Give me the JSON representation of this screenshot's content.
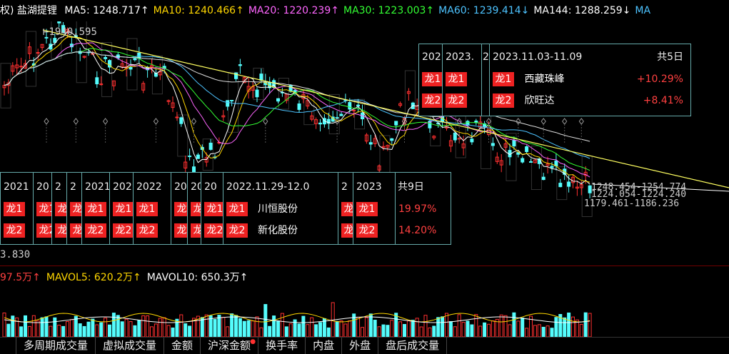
{
  "header": {
    "prefix": "权)",
    "stock_name": "盐湖提锂",
    "ma": [
      {
        "label": "MA5:",
        "value": "1248.717",
        "arrow": "↑",
        "color": "#ffffff"
      },
      {
        "label": "MA10:",
        "value": "1240.466",
        "arrow": "↑",
        "color": "#ffd700"
      },
      {
        "label": "MA20:",
        "value": "1220.239",
        "arrow": "↑",
        "color": "#ff66ff"
      },
      {
        "label": "MA30:",
        "value": "1223.003",
        "arrow": "↑",
        "color": "#33ff33"
      },
      {
        "label": "MA60:",
        "value": "1239.414",
        "arrow": "↓",
        "color": "#4dc3ff"
      },
      {
        "label": "MA144:",
        "value": "1288.259",
        "arrow": "↓",
        "color": "#ffffff"
      },
      {
        "label": "MA",
        "value": "",
        "arrow": "",
        "color": "#4dc3ff"
      }
    ]
  },
  "annotations": {
    "high": "1940.595",
    "low_left": "3.830",
    "right1": "1248.454-1254.774",
    "right2": "1224.054-1224.240",
    "right3": "1179.461-1186.236"
  },
  "panel_top": {
    "partial1": "202",
    "partial2": "2023.",
    "partial3": "2",
    "date": "2023.11.03-11.09",
    "total": "共5日",
    "rows": [
      {
        "badge": "龙1",
        "name": "西藏珠峰",
        "pct": "+10.29%"
      },
      {
        "badge": "龙2",
        "name": "欣旺达",
        "pct": "+8.41%"
      }
    ]
  },
  "panel_bottom": {
    "cols": [
      "2021",
      "20",
      "2",
      "2",
      "2021",
      "202",
      "2022",
      "20",
      "20",
      "20",
      "2022.11.29-12.0",
      "2",
      "2023"
    ],
    "total": "共9日",
    "badge1": "龙1",
    "badge2": "龙2",
    "name1": "川恒股份",
    "name2": "新化股份",
    "pct1": "19.97%",
    "pct2": "14.20%"
  },
  "volume_header": [
    {
      "text": "97.5万↑",
      "color": "#ff4040"
    },
    {
      "text": "MAVOL5: 620.2万↑",
      "color": "#ffd700"
    },
    {
      "text": "MAVOL10: 650.3万↑",
      "color": "#ffffff"
    }
  ],
  "tabs": [
    "多周期成交量",
    "虚拟成交量",
    "金额",
    "沪深金额",
    "换手率",
    "内盘",
    "外盘",
    "盘后成交量"
  ],
  "colors": {
    "up": "#ff3030",
    "down": "#54fcfc",
    "trend": "#ffff60",
    "badge": "#e22222"
  }
}
